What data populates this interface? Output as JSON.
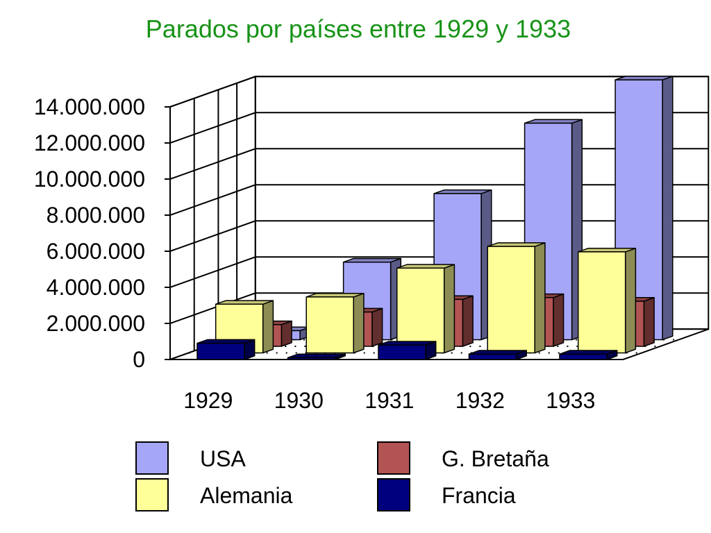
{
  "chart_data": {
    "type": "bar",
    "title": "Parados por países entre 1929 y 1933",
    "title_color": "#179317",
    "categories": [
      "1929",
      "1930",
      "1931",
      "1932",
      "1933"
    ],
    "yticks": [
      "0",
      "2.000.000",
      "4.000.000",
      "6.000.000",
      "8.000.000",
      "10.000.000",
      "12.000.000",
      "14.000.000"
    ],
    "ylim": [
      0,
      14000000
    ],
    "grid": true,
    "legend_position": "bottom",
    "series": [
      {
        "name": "USA",
        "color": "#a6a6f8",
        "values": [
          500000,
          4300000,
          8100000,
          12000000,
          14400000
        ]
      },
      {
        "name": "G. Bretaña",
        "color": "#b25454",
        "values": [
          1200000,
          1900000,
          2600000,
          2700000,
          2500000
        ]
      },
      {
        "name": "Alemania",
        "color": "#ffff99",
        "values": [
          2700000,
          3100000,
          4700000,
          5900000,
          5600000
        ]
      },
      {
        "name": "Francia",
        "color": "#00007f",
        "values": [
          900000,
          100000,
          800000,
          300000,
          300000
        ]
      }
    ]
  }
}
